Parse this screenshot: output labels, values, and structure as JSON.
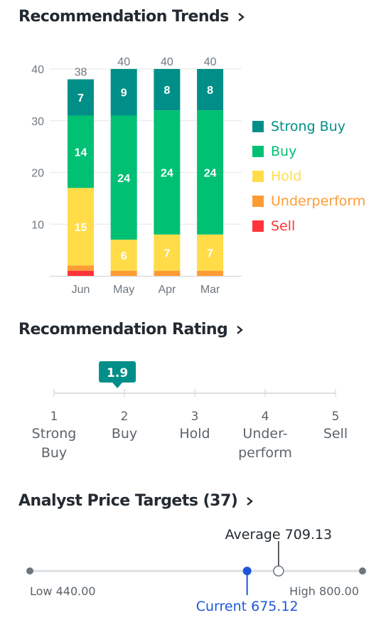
{
  "sections": {
    "trends_title": "Recommendation Trends",
    "rating_title": "Recommendation Rating",
    "targets_title": "Analyst Price Targets (37)"
  },
  "chart_data": [
    {
      "type": "bar",
      "stacked": true,
      "categories": [
        "Jun",
        "May",
        "Apr",
        "Mar"
      ],
      "series": [
        {
          "name": "Sell",
          "color": "#ff333a",
          "values": [
            1,
            0,
            0,
            0
          ]
        },
        {
          "name": "Underperform",
          "color": "#ff9b34",
          "values": [
            1,
            1,
            1,
            1
          ]
        },
        {
          "name": "Hold",
          "color": "#ffdc48",
          "values": [
            15,
            6,
            7,
            7
          ]
        },
        {
          "name": "Buy",
          "color": "#00c073",
          "values": [
            14,
            24,
            24,
            24
          ]
        },
        {
          "name": "Strong Buy",
          "color": "#008f88",
          "values": [
            7,
            9,
            8,
            8
          ]
        }
      ],
      "totals": [
        38,
        40,
        40,
        40
      ],
      "yticks": [
        10,
        20,
        30,
        40
      ],
      "ylim": [
        0,
        40
      ],
      "grid": true,
      "legend": "right",
      "legend_order": [
        "Strong Buy",
        "Buy",
        "Hold",
        "Underperform",
        "Sell"
      ],
      "data_labels_min": 5
    }
  ],
  "rating": {
    "value": 1.9,
    "value_label": "1.9",
    "min": 1,
    "max": 5,
    "marker_color": "#008f88",
    "scale": [
      {
        "num": "1",
        "line1": "Strong",
        "line2": "Buy"
      },
      {
        "num": "2",
        "line1": "Buy",
        "line2": ""
      },
      {
        "num": "3",
        "line1": "Hold",
        "line2": ""
      },
      {
        "num": "4",
        "line1": "Under-",
        "line2": "perform"
      },
      {
        "num": "5",
        "line1": "Sell",
        "line2": ""
      }
    ]
  },
  "price_targets": {
    "low": 440.0,
    "high": 800.0,
    "average": 709.13,
    "current": 675.12,
    "low_label": "Low 440.00",
    "high_label": "High 800.00",
    "average_label": "Average 709.13",
    "current_label": "Current 675.12",
    "current_color": "#1d57d8"
  }
}
